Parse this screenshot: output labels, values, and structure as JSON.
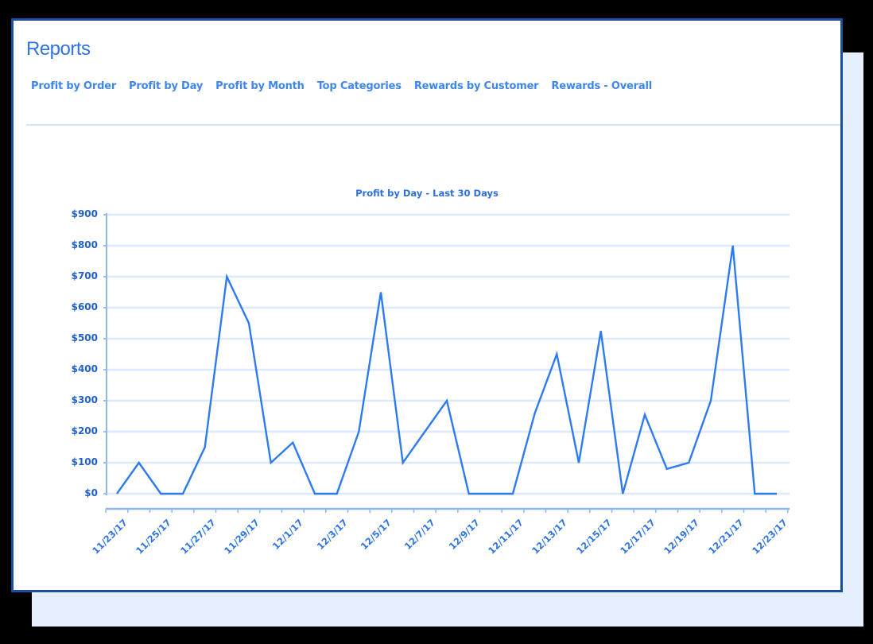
{
  "header": {
    "title": "Reports"
  },
  "tabs": [
    {
      "label": "Profit by Order"
    },
    {
      "label": "Profit by Day"
    },
    {
      "label": "Profit by Month"
    },
    {
      "label": "Top Categories"
    },
    {
      "label": "Rewards by Customer"
    },
    {
      "label": "Rewards - Overall"
    }
  ],
  "colors": {
    "accent": "#2f74e0",
    "line": "#2e7bf0",
    "grid": "#dde9fc",
    "border": "#1a4fa0",
    "shadow_panel": "#e6effd"
  },
  "chart_data": {
    "type": "line",
    "title": "Profit by Day - Last 30 Days",
    "xlabel": "",
    "ylabel": "",
    "ylim": [
      0,
      900
    ],
    "y_ticks": [
      "$0",
      "$100",
      "$200",
      "$300",
      "$400",
      "$500",
      "$600",
      "$700",
      "$800",
      "$900"
    ],
    "x": [
      "11/23/17",
      "11/24/17",
      "11/25/17",
      "11/26/17",
      "11/27/17",
      "11/28/17",
      "11/29/17",
      "11/30/17",
      "12/1/17",
      "12/2/17",
      "12/3/17",
      "12/4/17",
      "12/5/17",
      "12/6/17",
      "12/7/17",
      "12/8/17",
      "12/9/17",
      "12/10/17",
      "12/11/17",
      "12/12/17",
      "12/13/17",
      "12/14/17",
      "12/15/17",
      "12/16/17",
      "12/17/17",
      "12/18/17",
      "12/19/17",
      "12/20/17",
      "12/21/17",
      "12/22/17",
      "12/23/17"
    ],
    "x_tick_labels": [
      "11/23/17",
      "11/25/17",
      "11/27/17",
      "11/29/17",
      "12/1/17",
      "12/3/17",
      "12/5/17",
      "12/7/17",
      "12/9/17",
      "12/11/17",
      "12/13/17",
      "12/15/17",
      "12/17/17",
      "12/19/17",
      "12/21/17",
      "12/23/17"
    ],
    "series": [
      {
        "name": "Profit",
        "values": [
          0,
          100,
          0,
          0,
          150,
          700,
          550,
          100,
          165,
          0,
          0,
          200,
          650,
          100,
          200,
          300,
          0,
          0,
          0,
          260,
          450,
          100,
          525,
          0,
          255,
          80,
          100,
          300,
          800,
          0,
          0
        ]
      }
    ],
    "grid": true,
    "legend": "none"
  }
}
